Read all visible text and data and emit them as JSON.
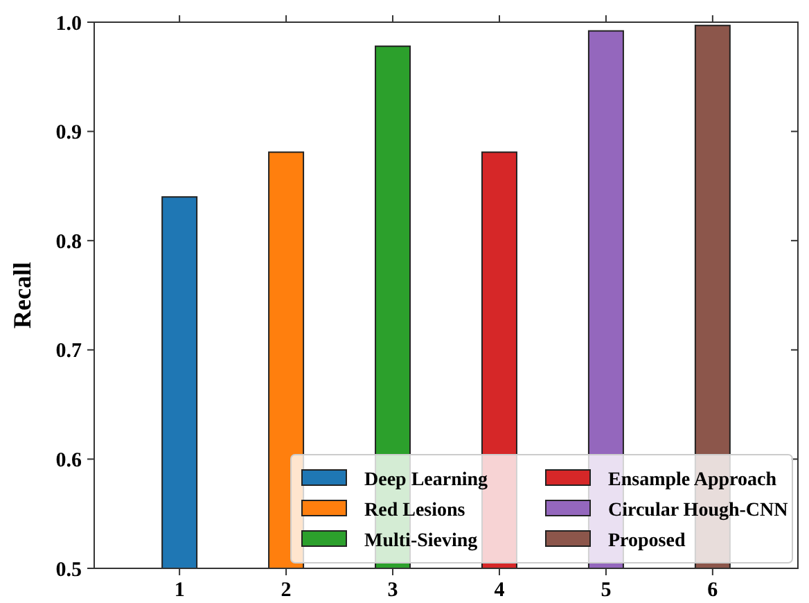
{
  "chart_data": {
    "type": "bar",
    "ylabel": "Recall",
    "categories": [
      "1",
      "2",
      "3",
      "4",
      "5",
      "6"
    ],
    "series": [
      {
        "name": "Deep Learning",
        "color": "#1f77b4",
        "values": [
          0.84,
          null,
          null,
          null,
          null,
          null
        ]
      },
      {
        "name": "Red Lesions",
        "color": "#ff7f0e",
        "values": [
          null,
          0.881,
          null,
          null,
          null,
          null
        ]
      },
      {
        "name": "Multi-Sieving",
        "color": "#2ca02c",
        "values": [
          null,
          null,
          0.978,
          null,
          null,
          null
        ]
      },
      {
        "name": "Ensample Approach",
        "color": "#d62728",
        "values": [
          null,
          null,
          null,
          0.881,
          null,
          null
        ]
      },
      {
        "name": "Circular Hough-CNN",
        "color": "#9467bd",
        "values": [
          null,
          null,
          null,
          null,
          0.992,
          null
        ]
      },
      {
        "name": "Proposed",
        "color": "#8c564b",
        "values": [
          null,
          null,
          null,
          null,
          null,
          0.997
        ]
      }
    ],
    "ylim": [
      0.5,
      1.0
    ],
    "yticks": [
      {
        "value": 0.5,
        "label": "0.5"
      },
      {
        "value": 0.6,
        "label": "0.6"
      },
      {
        "value": 0.7,
        "label": "0.7"
      },
      {
        "value": 0.8,
        "label": "0.8"
      },
      {
        "value": 0.9,
        "label": "0.9"
      },
      {
        "value": 1.0,
        "label": "1.0"
      }
    ],
    "legend": "bottom right"
  }
}
